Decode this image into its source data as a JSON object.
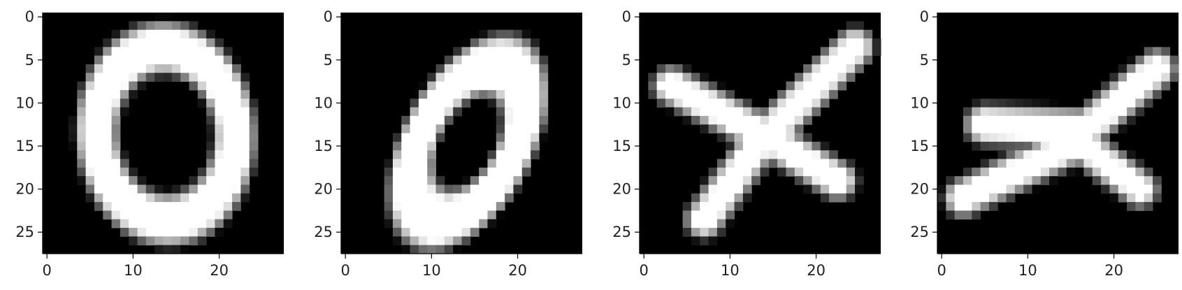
{
  "chart_data": [
    {
      "type": "heatmap",
      "title": "",
      "colormap": "gray",
      "xlim": [
        0,
        27
      ],
      "ylim": [
        27,
        0
      ],
      "xticks": [
        "0",
        "10",
        "20"
      ],
      "yticks": [
        "0",
        "5",
        "10",
        "15",
        "20",
        "25"
      ],
      "grid": false,
      "description_shape": "digit-zero-upright",
      "strokes": [
        {
          "kind": "ellipse",
          "cx": 13.8,
          "cy": 13.6,
          "rx": 8.0,
          "ry": 10.0,
          "rotation_deg": -4,
          "width": 3.4,
          "intensity": 1.0
        }
      ]
    },
    {
      "type": "heatmap",
      "title": "",
      "colormap": "gray",
      "xlim": [
        0,
        27
      ],
      "ylim": [
        27,
        0
      ],
      "xticks": [
        "0",
        "10",
        "20"
      ],
      "yticks": [
        "0",
        "5",
        "10",
        "15",
        "20",
        "25"
      ],
      "grid": false,
      "description_shape": "digit-zero-slanted",
      "strokes": [
        {
          "kind": "ellipse",
          "cx": 14.2,
          "cy": 14.6,
          "rx": 5.4,
          "ry": 9.8,
          "rotation_deg": 28,
          "width": 4.0,
          "intensity": 1.0
        }
      ]
    },
    {
      "type": "heatmap",
      "title": "",
      "colormap": "gray",
      "xlim": [
        0,
        27
      ],
      "ylim": [
        27,
        0
      ],
      "xticks": [
        "0",
        "10",
        "20"
      ],
      "yticks": [
        "0",
        "5",
        "10",
        "15",
        "20",
        "25"
      ],
      "grid": false,
      "description_shape": "letter-x",
      "strokes": [
        {
          "kind": "line",
          "points": [
            [
              3.2,
              8.0
            ],
            [
              13.5,
              13.5
            ],
            [
              22.5,
              19.0
            ]
          ],
          "width": 2.4,
          "intensity": 1.0
        },
        {
          "kind": "line",
          "points": [
            [
              24.5,
              3.5
            ],
            [
              13.5,
              14.5
            ],
            [
              7.0,
              23.5
            ]
          ],
          "width": 2.4,
          "intensity": 1.0
        }
      ]
    },
    {
      "type": "heatmap",
      "title": "",
      "colormap": "gray",
      "xlim": [
        0,
        27
      ],
      "ylim": [
        27,
        0
      ],
      "xticks": [
        "0",
        "10",
        "20"
      ],
      "yticks": [
        "0",
        "5",
        "10",
        "15",
        "20",
        "25"
      ],
      "grid": false,
      "description_shape": "letter-x-slanted",
      "strokes": [
        {
          "kind": "line",
          "points": [
            [
              5.0,
              12.5
            ],
            [
              16.0,
              13.0
            ]
          ],
          "width": 2.6,
          "intensity": 1.0
        },
        {
          "kind": "line",
          "points": [
            [
              2.5,
              21.0
            ],
            [
              14.0,
              15.5
            ],
            [
              25.0,
              6.0
            ]
          ],
          "width": 2.4,
          "intensity": 1.0
        },
        {
          "kind": "line",
          "points": [
            [
              14.5,
              13.5
            ],
            [
              23.0,
              20.0
            ]
          ],
          "width": 2.2,
          "intensity": 1.0
        }
      ]
    }
  ]
}
